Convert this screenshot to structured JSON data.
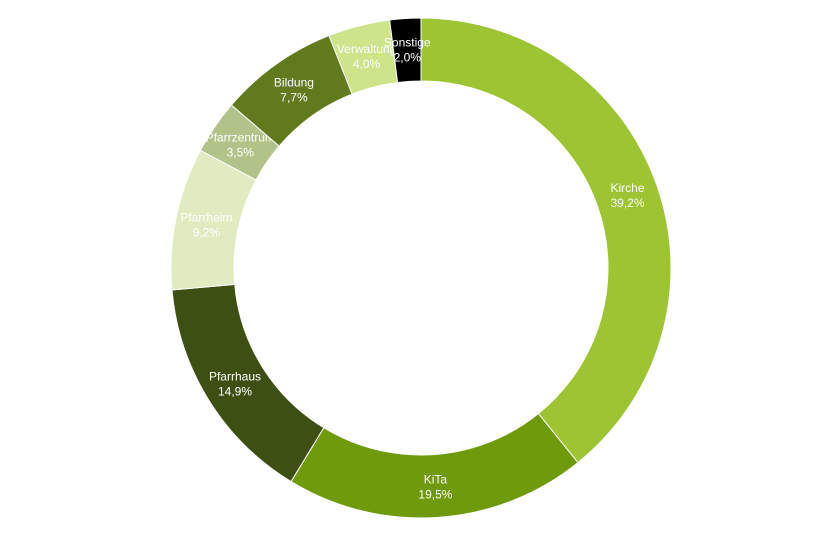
{
  "chart_data": {
    "type": "pie",
    "variant": "donut",
    "title": "",
    "legend": "none",
    "slices": [
      {
        "name": "Kirche",
        "value": 39.2,
        "label_value": "39,2%",
        "color": "#9dc433",
        "label_color": "#ffffff"
      },
      {
        "name": "KiTa",
        "value": 19.5,
        "label_value": "19,5%",
        "color": "#6f9a0c",
        "label_color": "#ffffff"
      },
      {
        "name": "Pfarrhaus",
        "value": 14.9,
        "label_value": "14,9%",
        "color": "#3d4f12",
        "label_color": "#ffffff"
      },
      {
        "name": "Pfarrheim",
        "value": 9.2,
        "label_value": "9,2%",
        "color": "#e1ebc2",
        "label_color": "#ffffff"
      },
      {
        "name": "Pfarrzentrum",
        "value": 3.5,
        "label_value": "3,5%",
        "color": "#b1c388",
        "label_color": "#ffffff"
      },
      {
        "name": "Bildung",
        "value": 7.7,
        "label_value": "7,7%",
        "color": "#627a1e",
        "label_color": "#ffffff"
      },
      {
        "name": "Verwaltung",
        "value": 4.0,
        "label_value": "4,0%",
        "color": "#cde48a",
        "label_color": "#ffffff"
      },
      {
        "name": "Sonstige",
        "value": 2.0,
        "label_value": "2,0%",
        "color": "#000000",
        "label_color": "#ffffff"
      }
    ]
  }
}
